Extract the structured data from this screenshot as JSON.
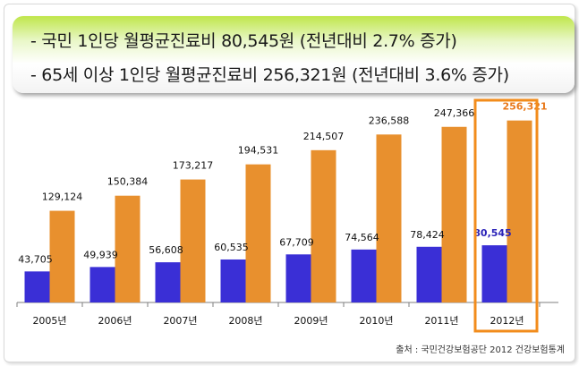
{
  "header": {
    "line1": "- 국민 1인당 월평균진료비 80,545원 (전년대비 2.7% 증가)",
    "line2": "- 65세 이상 1인당 월평균진료비 256,321원 (전년대비 3.6% 증가)"
  },
  "source": "출처 : 국민건강보험공단  2012 건강보험통계",
  "colors": {
    "series_all": "#3a2fd6",
    "series_65plus": "#e8902e",
    "highlight_border": "#f28c1c",
    "highlight_label_all": "#2a22b8",
    "highlight_label_65plus": "#e8781a"
  },
  "chart_data": {
    "type": "bar",
    "categories": [
      "2005년",
      "2006년",
      "2007년",
      "2008년",
      "2009년",
      "2010년",
      "2011년",
      "2012년"
    ],
    "series": [
      {
        "values": [
          43705,
          49939,
          56608,
          60535,
          67709,
          74564,
          78424,
          80545
        ]
      },
      {
        "values": [
          129124,
          150384,
          173217,
          194531,
          214507,
          236588,
          247366,
          256321
        ]
      }
    ],
    "data_labels": {
      "series0": [
        "43,705",
        "49,939",
        "56,608",
        "60,535",
        "67,709",
        "74,564",
        "78,424",
        "80,545"
      ],
      "series1": [
        "129,124",
        "150,384",
        "173,217",
        "194,531",
        "214,507",
        "236,588",
        "247,366",
        "256,321"
      ]
    },
    "highlight_category": "2012년",
    "ylim": [
      0,
      300000
    ],
    "grid": false,
    "legend": "none"
  }
}
